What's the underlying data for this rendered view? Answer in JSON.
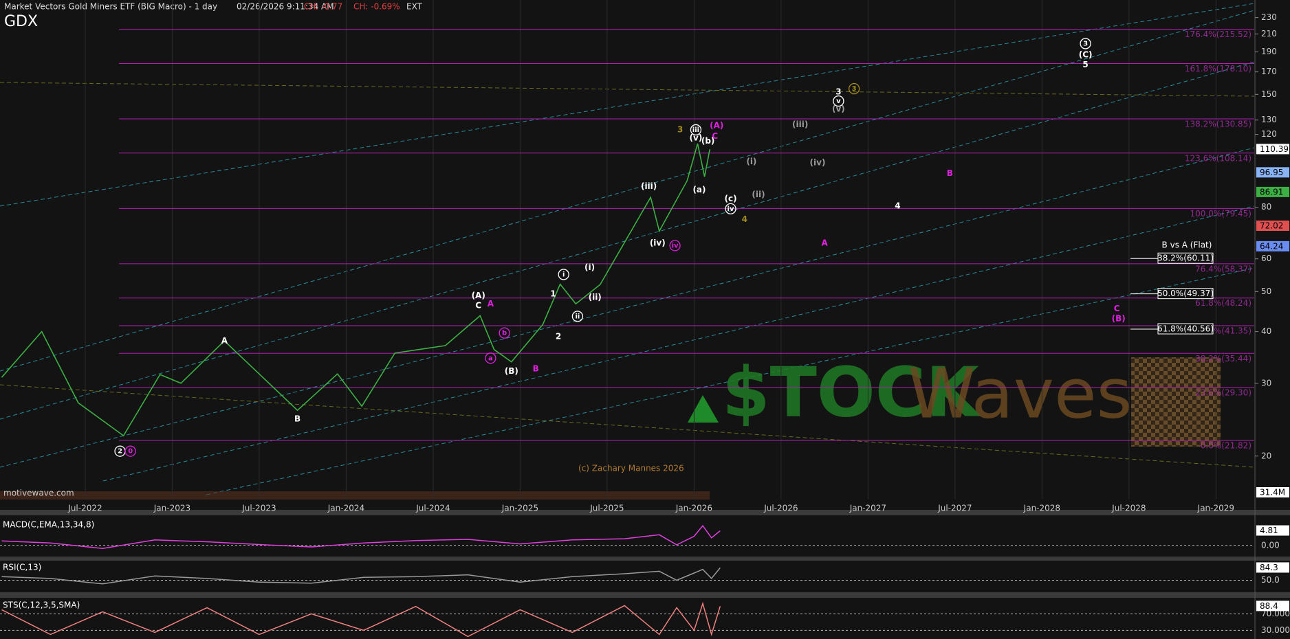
{
  "chart_data": {
    "type": "line",
    "title": "Market Vectors Gold Miners ETF (BIG Macro) - 1 day",
    "subtitle": "02/26/2026 9:11:34 AM",
    "change": "CH: -0.77",
    "change_pct": "CH: -0.69%",
    "session": "EXT",
    "symbol": "GDX",
    "copyright": "(c) Zachary Mannes 2026",
    "source": "motivewave.com",
    "watermark": [
      "$TOCK",
      "Waves"
    ],
    "log_scale": true,
    "grid": true,
    "color": "#3cb043",
    "xlim": [
      2022.01,
      2029.22
    ],
    "xticks": [
      {
        "value": 2022.5,
        "label": "Jul-2022"
      },
      {
        "value": 2023.0,
        "label": "Jan-2023"
      },
      {
        "value": 2023.5,
        "label": "Jul-2023"
      },
      {
        "value": 2024.0,
        "label": "Jan-2024"
      },
      {
        "value": 2024.5,
        "label": "Jul-2024"
      },
      {
        "value": 2025.0,
        "label": "Jan-2025"
      },
      {
        "value": 2025.5,
        "label": "Jul-2025"
      },
      {
        "value": 2026.0,
        "label": "Jan-2026"
      },
      {
        "value": 2026.5,
        "label": "Jul-2026"
      },
      {
        "value": 2027.0,
        "label": "Jan-2027"
      },
      {
        "value": 2027.5,
        "label": "Jul-2027"
      },
      {
        "value": 2028.0,
        "label": "Jan-2028"
      },
      {
        "value": 2028.5,
        "label": "Jul-2028"
      },
      {
        "value": 2029.0,
        "label": "Jan-2029"
      }
    ],
    "ylim": [
      15.7,
      253.7
    ],
    "yticks": [
      20,
      30,
      40,
      50,
      60,
      80,
      120,
      130,
      150,
      170,
      190,
      210,
      230
    ],
    "x": [
      2022.02,
      2022.25,
      2022.46,
      2022.72,
      2022.93,
      2023.05,
      2023.3,
      2023.5,
      2023.72,
      2023.95,
      2024.09,
      2024.28,
      2024.57,
      2024.77,
      2024.85,
      2024.95,
      2025.13,
      2025.23,
      2025.32,
      2025.46,
      2025.75,
      2025.8,
      2025.96,
      2026.02,
      2026.06,
      2026.09
    ],
    "values": [
      31,
      40,
      26.9,
      22.4,
      31.5,
      30,
      38,
      31.6,
      25.8,
      31.6,
      26.4,
      35.5,
      37,
      43.7,
      36.2,
      33.8,
      41.6,
      52.1,
      46.7,
      52,
      84.5,
      70,
      92.7,
      114,
      94.8,
      110.39
    ],
    "price_markers": [
      {
        "value": 110.39,
        "color": "#ffffff"
      },
      {
        "value": 96.95,
        "color": "#8ab4f8"
      },
      {
        "value": 86.91,
        "color": "#3cb043"
      },
      {
        "value": 72.02,
        "color": "#e05050"
      },
      {
        "value": 64.24,
        "color": "#6a8cf0"
      }
    ],
    "volume_label": "31.4M",
    "fib_levels": [
      {
        "value": 215.52,
        "label": "176.4%(215.52)"
      },
      {
        "value": 178.1,
        "label": "161.8%(178.10)"
      },
      {
        "value": 130.85,
        "label": "138.2%(130.85)"
      },
      {
        "value": 108.14,
        "label": "123.6%(108.14)"
      },
      {
        "value": 79.45,
        "label": "100.0%(79.45)"
      },
      {
        "value": 58.37,
        "label": "76.4%(58.37)"
      },
      {
        "value": 48.24,
        "label": "61.8%(48.24)"
      },
      {
        "value": 41.35,
        "label": "50.0%(41.35)"
      },
      {
        "value": 35.44,
        "label": "38.2%(35.44)"
      },
      {
        "value": 29.3,
        "label": "23.6%(29.30)"
      },
      {
        "value": 21.82,
        "label": "0.0%(21.82)"
      }
    ],
    "retracement": {
      "title": "B vs A (Flat)",
      "levels": [
        {
          "value": 60.11,
          "label": "38.2%(60.11)"
        },
        {
          "value": 49.37,
          "label": "50.0%(49.37)"
        },
        {
          "value": 40.56,
          "label": "61.8%(40.56)"
        }
      ]
    },
    "annotations": [
      {
        "label": "2",
        "x": 2022.7,
        "y": 20.55,
        "color": "#ffffff",
        "circled": true
      },
      {
        "label": "0",
        "x": 2022.76,
        "y": 20.55,
        "color": "#e020e0",
        "circled": true
      },
      {
        "label": "A",
        "x": 2023.3,
        "y": 37.96,
        "color": "#ffffff",
        "circled": false
      },
      {
        "label": "B",
        "x": 2023.72,
        "y": 24.58,
        "color": "#ffffff",
        "circled": false
      },
      {
        "label": "(A)",
        "x": 2024.76,
        "y": 48.85,
        "color": "#ffffff",
        "circled": false
      },
      {
        "label": "C",
        "x": 2024.76,
        "y": 46.2,
        "color": "#ffffff",
        "circled": false
      },
      {
        "label": "A",
        "x": 2024.83,
        "y": 46.6,
        "color": "#e020e0",
        "circled": false
      },
      {
        "label": "a",
        "x": 2024.83,
        "y": 34.5,
        "color": "#e020e0",
        "circled": true
      },
      {
        "label": "b",
        "x": 2024.91,
        "y": 39.7,
        "color": "#e020e0",
        "circled": true
      },
      {
        "label": "(B)",
        "x": 2024.95,
        "y": 32.05,
        "color": "#ffffff",
        "circled": false
      },
      {
        "label": "B",
        "x": 2025.09,
        "y": 32.5,
        "color": "#e020e0",
        "circled": false
      },
      {
        "label": "1",
        "x": 2025.19,
        "y": 49.3,
        "color": "#ffffff",
        "circled": false
      },
      {
        "label": "i",
        "x": 2025.25,
        "y": 55.0,
        "color": "#ffffff",
        "circled": true
      },
      {
        "label": "2",
        "x": 2025.22,
        "y": 38.9,
        "color": "#ffffff",
        "circled": false
      },
      {
        "label": "ii",
        "x": 2025.33,
        "y": 43.55,
        "color": "#ffffff",
        "circled": true
      },
      {
        "label": "(i)",
        "x": 2025.4,
        "y": 57.1,
        "color": "#ffffff",
        "circled": false
      },
      {
        "label": "(ii)",
        "x": 2025.43,
        "y": 48.4,
        "color": "#ffffff",
        "circled": false
      },
      {
        "label": "(iii)",
        "x": 2025.74,
        "y": 89.8,
        "color": "#ffffff",
        "circled": false
      },
      {
        "label": "(iv)",
        "x": 2025.79,
        "y": 65.4,
        "color": "#ffffff",
        "circled": false
      },
      {
        "label": "iv",
        "x": 2025.89,
        "y": 64.6,
        "color": "#e020e0",
        "circled": true
      },
      {
        "label": "3",
        "x": 2025.92,
        "y": 123.1,
        "color": "#a08a20",
        "circled": false
      },
      {
        "label": "iii",
        "x": 2026.01,
        "y": 123.1,
        "color": "#ffffff",
        "circled": true
      },
      {
        "label": "(v)",
        "x": 2026.01,
        "y": 117.6,
        "color": "#ffffff",
        "circled": false
      },
      {
        "label": "(A)",
        "x": 2026.13,
        "y": 126,
        "color": "#e020e0",
        "circled": false
      },
      {
        "label": "C",
        "x": 2026.12,
        "y": 118.7,
        "color": "#e020e0",
        "circled": false
      },
      {
        "label": "(b)",
        "x": 2026.08,
        "y": 115.5,
        "color": "#ffffff",
        "circled": false
      },
      {
        "label": "(a)",
        "x": 2026.03,
        "y": 88.1,
        "color": "#ffffff",
        "circled": false
      },
      {
        "label": "(c)",
        "x": 2026.21,
        "y": 83.8,
        "color": "#ffffff",
        "circled": false
      },
      {
        "label": "iv",
        "x": 2026.21,
        "y": 79.3,
        "color": "#ffffff",
        "circled": true
      },
      {
        "label": "4",
        "x": 2026.29,
        "y": 74.7,
        "color": "#a08a20",
        "circled": false
      },
      {
        "label": "(i)",
        "x": 2026.33,
        "y": 103,
        "color": "#9a9a9a",
        "circled": false
      },
      {
        "label": "(ii)",
        "x": 2026.37,
        "y": 85.8,
        "color": "#9a9a9a",
        "circled": false
      },
      {
        "label": "(iii)",
        "x": 2026.61,
        "y": 126.6,
        "color": "#9a9a9a",
        "circled": false
      },
      {
        "label": "(iv)",
        "x": 2026.71,
        "y": 102.5,
        "color": "#9a9a9a",
        "circled": false
      },
      {
        "label": "(v)",
        "x": 2026.83,
        "y": 138,
        "color": "#9a9a9a",
        "circled": false
      },
      {
        "label": "v",
        "x": 2026.83,
        "y": 144.5,
        "color": "#ffffff",
        "circled": true
      },
      {
        "label": "3",
        "x": 2026.83,
        "y": 151.9,
        "color": "#ffffff",
        "circled": false
      },
      {
        "label": "3",
        "x": 2026.92,
        "y": 154.8,
        "color": "#a08a20",
        "circled": true
      },
      {
        "label": "4",
        "x": 2027.17,
        "y": 80.4,
        "color": "#ffffff",
        "circled": false
      },
      {
        "label": "A",
        "x": 2026.75,
        "y": 65.4,
        "color": "#e020e0",
        "circled": false
      },
      {
        "label": "B",
        "x": 2027.47,
        "y": 96.6,
        "color": "#e020e0",
        "circled": false
      },
      {
        "label": "C",
        "x": 2028.43,
        "y": 45.4,
        "color": "#e020e0",
        "circled": false
      },
      {
        "label": "(B)",
        "x": 2028.44,
        "y": 43,
        "color": "#e020e0",
        "circled": false
      },
      {
        "label": "3",
        "x": 2028.25,
        "y": 199,
        "color": "#ffffff",
        "circled": true
      },
      {
        "label": "(C)",
        "x": 2028.25,
        "y": 186.7,
        "color": "#ffffff",
        "circled": false
      },
      {
        "label": "5",
        "x": 2028.25,
        "y": 176.7,
        "color": "#ffffff",
        "circled": false
      }
    ],
    "indicators": [
      {
        "title": "MACD(C,EMA,13,34,8)",
        "ylim": [
          -3.21,
          8.55
        ],
        "yticks": [
          {
            "value": 0,
            "label": "0.00"
          }
        ],
        "last_value": 4.81,
        "color": "#e040e0",
        "x": [
          2022.02,
          2022.3,
          2022.6,
          2022.9,
          2023.2,
          2023.5,
          2023.8,
          2024.1,
          2024.4,
          2024.7,
          2025.0,
          2025.3,
          2025.6,
          2025.8,
          2025.9,
          2026.0,
          2026.05,
          2026.1,
          2026.15
        ],
        "values": [
          1.5,
          0.8,
          -1.0,
          1.8,
          1.2,
          0.3,
          -0.5,
          0.8,
          1.6,
          2.0,
          0.5,
          1.8,
          2.2,
          3.5,
          0.2,
          3.0,
          6.5,
          2.5,
          4.81
        ]
      },
      {
        "title": "RSI(C,13)",
        "ylim": [
          22.6,
          100.3
        ],
        "yticks": [
          {
            "value": 50,
            "label": "50.0"
          }
        ],
        "last_value": 84.3,
        "color": "#9a9a9a",
        "x": [
          2022.02,
          2022.3,
          2022.6,
          2022.9,
          2023.2,
          2023.5,
          2023.8,
          2024.1,
          2024.4,
          2024.7,
          2025.0,
          2025.3,
          2025.6,
          2025.8,
          2025.9,
          2026.0,
          2026.05,
          2026.1,
          2026.15
        ],
        "values": [
          60,
          55,
          40,
          62,
          55,
          45,
          42,
          58,
          60,
          65,
          45,
          60,
          68,
          75,
          50,
          70,
          80,
          55,
          84.3
        ]
      },
      {
        "title": "STS(C,12,3,5,SMA)",
        "ylim": [
          14,
          104
        ],
        "yticks": [
          {
            "value": 70,
            "label": "70.0000"
          },
          {
            "value": 30,
            "label": "30.0000"
          }
        ],
        "last_value": 88.4,
        "color": "#f08080",
        "x": [
          2022.02,
          2022.3,
          2022.6,
          2022.9,
          2023.2,
          2023.5,
          2023.8,
          2024.1,
          2024.4,
          2024.7,
          2025.0,
          2025.3,
          2025.6,
          2025.8,
          2025.9,
          2026.0,
          2026.05,
          2026.1,
          2026.15
        ],
        "values": [
          80,
          20,
          75,
          25,
          85,
          20,
          70,
          30,
          88,
          15,
          80,
          25,
          90,
          20,
          85,
          30,
          95,
          20,
          88.4
        ]
      }
    ]
  }
}
